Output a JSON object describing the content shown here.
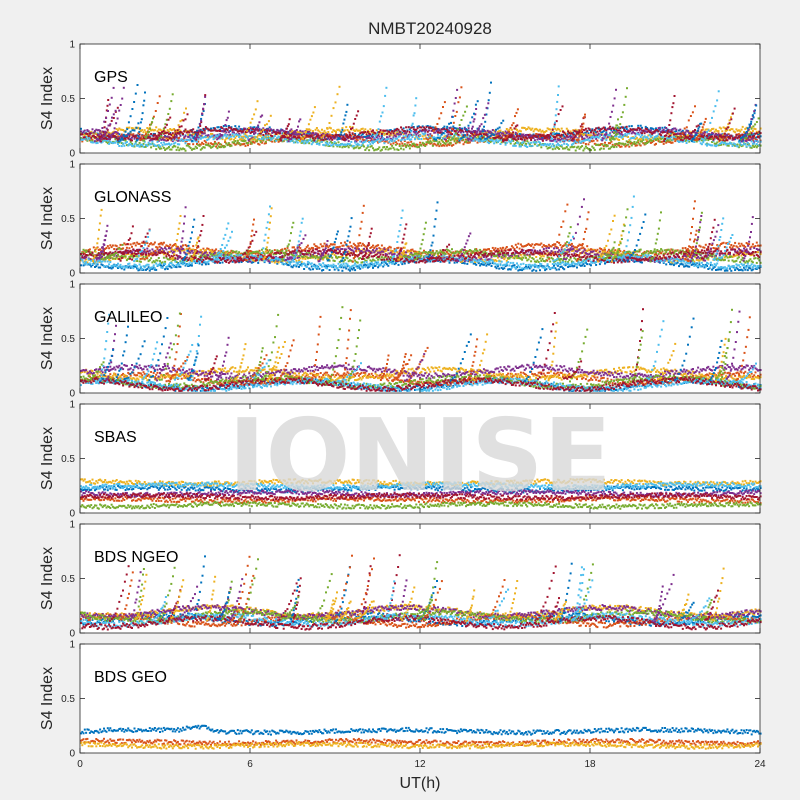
{
  "chart_data": {
    "type": "scatter",
    "title": "NMBT20240928",
    "xlabel": "UT(h)",
    "watermark": "IONISE",
    "xlim": [
      0,
      24
    ],
    "xticks": [
      "0",
      "6",
      "12",
      "18",
      "24"
    ],
    "colors": [
      "#0072BD",
      "#D95319",
      "#EDB120",
      "#7E2F8E",
      "#77AC30",
      "#4DBEEE",
      "#A2142F"
    ],
    "panels": [
      {
        "label": "GPS",
        "ylabel": "S4 Index",
        "ylim": [
          0,
          1
        ],
        "yticks": [
          "0",
          "0.5",
          "1"
        ],
        "baseline": [
          0.08,
          0.2
        ],
        "peak_max": 0.65,
        "peak_count": 60
      },
      {
        "label": "GLONASS",
        "ylabel": "S4 Index",
        "ylim": [
          0,
          1
        ],
        "yticks": [
          "0",
          "0.5",
          "1"
        ],
        "baseline": [
          0.07,
          0.22
        ],
        "peak_max": 0.7,
        "peak_count": 55
      },
      {
        "label": "GALILEO",
        "ylabel": "S4 Index",
        "ylim": [
          0,
          1
        ],
        "yticks": [
          "0",
          "0.5",
          "1"
        ],
        "baseline": [
          0.06,
          0.2
        ],
        "peak_max": 0.78,
        "peak_count": 55
      },
      {
        "label": "SBAS",
        "ylabel": "S4 Index",
        "ylim": [
          0,
          1
        ],
        "yticks": [
          "0",
          "0.5",
          "1"
        ],
        "series_levels": [
          0.22,
          0.12,
          0.28,
          0.18,
          0.07,
          0.25,
          0.15
        ],
        "peak_max": 0.35,
        "peak_count": 0
      },
      {
        "label": "BDS NGEO",
        "ylabel": "S4 Index",
        "ylim": [
          0,
          1
        ],
        "yticks": [
          "0",
          "0.5",
          "1"
        ],
        "baseline": [
          0.08,
          0.22
        ],
        "peak_max": 0.72,
        "peak_count": 60
      },
      {
        "label": "BDS GEO",
        "ylabel": "S4 Index",
        "ylim": [
          0,
          1
        ],
        "yticks": [
          "0",
          "0.5",
          "1"
        ],
        "series_levels": [
          0.2,
          0.1,
          0.07
        ],
        "peak_max": 0.25,
        "peak_count": 0
      }
    ]
  }
}
